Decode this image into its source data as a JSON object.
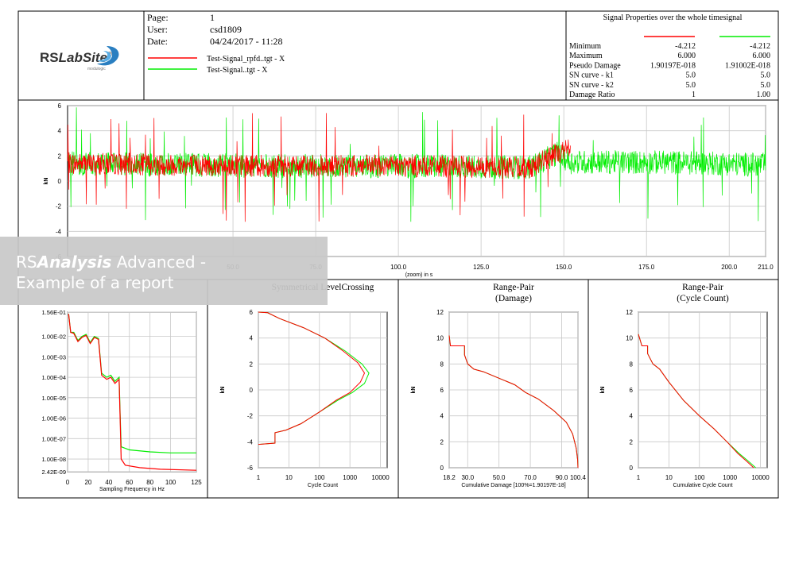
{
  "header": {
    "info_labels": [
      "Page:",
      "User:",
      "Date:"
    ],
    "info_values": [
      "1",
      "csd1809",
      "04/24/2017 - 11:28"
    ],
    "logo": {
      "prefix": "RS",
      "name": "LabSite",
      "mark": "®",
      "sub": "modulogic"
    },
    "legend": [
      {
        "label": "Test-Signal_rpfd..tgt - X",
        "color": "#ff0000"
      },
      {
        "label": "Test-Signal..tgt - X",
        "color": "#00ee00"
      }
    ]
  },
  "properties": {
    "title": "Signal Properties over the whole timesignal",
    "series_colors": [
      "#ff0000",
      "#00ee00"
    ],
    "rows": [
      {
        "name": "Minimum",
        "values": [
          "-4.212",
          "-4.212"
        ]
      },
      {
        "name": "Maximum",
        "values": [
          "6.000",
          "6.000"
        ]
      },
      {
        "name": "Pseudo Damage",
        "values": [
          "1.90197E-018",
          "1.91002E-018"
        ]
      },
      {
        "name": "SN curve - k1",
        "values": [
          "5.0",
          "5.0"
        ]
      },
      {
        "name": "SN curve - k2",
        "values": [
          "5.0",
          "5.0"
        ]
      },
      {
        "name": "Damage Ratio",
        "values": [
          "1",
          "1.00"
        ]
      }
    ]
  },
  "overlay": {
    "rs": "RS",
    "bold": "Analysis",
    "rest": " Advanced -",
    "line2": "Example of a report"
  },
  "chart_data": [
    {
      "id": "time",
      "type": "line",
      "title": "",
      "xlabel": "(zoom) in s",
      "ylabel": "kN",
      "xlim": [
        0,
        211.0
      ],
      "ylim": [
        -6,
        6
      ],
      "xticks": [
        "50.0",
        "75.0",
        "100.0",
        "125.0",
        "150.0",
        "175.0",
        "200.0",
        "211.0"
      ],
      "yticks": [
        "6",
        "4",
        "2",
        "0",
        "-2",
        "-4",
        "-6"
      ],
      "series": [
        {
          "color": "#ff0000",
          "t_end": 152,
          "center": [
            [
              0,
              1.4
            ],
            [
              30,
              1.3
            ],
            [
              60,
              1.2
            ],
            [
              100,
              1.2
            ],
            [
              140,
              1.1
            ],
            [
              148,
              2.2
            ],
            [
              152,
              2.6
            ]
          ],
          "amp": 0.55
        },
        {
          "color": "#00ee00",
          "t_end": 211,
          "center": [
            [
              0,
              1.4
            ],
            [
              30,
              1.3
            ],
            [
              60,
              1.2
            ],
            [
              100,
              1.2
            ],
            [
              140,
              1.1
            ],
            [
              148,
              2.2
            ],
            [
              152,
              1.5
            ],
            [
              180,
              1.5
            ],
            [
              211,
              1.3
            ]
          ],
          "amp": 0.6
        }
      ]
    },
    {
      "id": "psd",
      "type": "line",
      "title": "",
      "xlabel": "Sampling Frequency in Hz",
      "ylabel": "",
      "xlim": [
        0,
        125
      ],
      "ylim_log10": [
        -8.62,
        -0.81
      ],
      "xticks": [
        "0",
        "20",
        "40",
        "60",
        "80",
        "100",
        "125"
      ],
      "yticks": [
        "1.56E-01",
        "1.00E-02",
        "1.00E-03",
        "1.00E-04",
        "1.00E-05",
        "1.00E-06",
        "1.00E-07",
        "1.00E-08",
        "2.42E-09"
      ],
      "series": [
        {
          "color": "#00ee00",
          "points": [
            [
              1,
              -0.9
            ],
            [
              3,
              -1.8
            ],
            [
              6,
              -1.8
            ],
            [
              10,
              -2.2
            ],
            [
              14,
              -2.0
            ],
            [
              18,
              -1.9
            ],
            [
              22,
              -2.3
            ],
            [
              26,
              -2.0
            ],
            [
              30,
              -2.1
            ],
            [
              33,
              -3.8
            ],
            [
              38,
              -4.0
            ],
            [
              42,
              -3.9
            ],
            [
              46,
              -4.2
            ],
            [
              50,
              -4.0
            ],
            [
              51,
              -5.8
            ],
            [
              52,
              -7.4
            ],
            [
              60,
              -7.55
            ],
            [
              80,
              -7.65
            ],
            [
              100,
              -7.7
            ],
            [
              125,
              -7.7
            ]
          ]
        },
        {
          "color": "#ff0000",
          "points": [
            [
              1,
              -0.9
            ],
            [
              3,
              -1.8
            ],
            [
              6,
              -1.85
            ],
            [
              10,
              -2.25
            ],
            [
              14,
              -2.05
            ],
            [
              18,
              -1.95
            ],
            [
              22,
              -2.35
            ],
            [
              26,
              -2.05
            ],
            [
              30,
              -2.15
            ],
            [
              33,
              -3.9
            ],
            [
              38,
              -4.1
            ],
            [
              42,
              -4.0
            ],
            [
              46,
              -4.3
            ],
            [
              50,
              -4.1
            ],
            [
              51,
              -6.0
            ],
            [
              52,
              -8.0
            ],
            [
              56,
              -8.3
            ],
            [
              70,
              -8.42
            ],
            [
              90,
              -8.5
            ],
            [
              125,
              -8.55
            ]
          ]
        }
      ]
    },
    {
      "id": "lc",
      "type": "line",
      "title": "Symmetrical LevelCrossing",
      "xlabel": "Cycle Count",
      "ylabel": "kN",
      "xlim_log10": [
        0,
        4.22
      ],
      "ylim": [
        -6,
        6
      ],
      "xticks": [
        "1",
        "10",
        "100",
        "1000",
        "10000"
      ],
      "yticks": [
        "6",
        "4",
        "2",
        "0",
        "-2",
        "-4",
        "-6"
      ],
      "series": [
        {
          "color": "#00ee00",
          "points": [
            [
              1,
              6
            ],
            [
              2,
              5.95
            ],
            [
              5,
              5.5
            ],
            [
              30,
              4.8
            ],
            [
              150,
              4.0
            ],
            [
              700,
              3.0
            ],
            [
              2500,
              2.0
            ],
            [
              4200,
              1.3
            ],
            [
              3000,
              0.5
            ],
            [
              1200,
              -0.2
            ],
            [
              400,
              -0.8
            ],
            [
              100,
              -1.7
            ],
            [
              25,
              -2.6
            ],
            [
              8,
              -3.1
            ],
            [
              3.5,
              -3.3
            ],
            [
              3.5,
              -4.1
            ],
            [
              1,
              -4.2
            ]
          ]
        },
        {
          "color": "#ff0000",
          "points": [
            [
              1,
              6
            ],
            [
              2,
              5.95
            ],
            [
              5,
              5.5
            ],
            [
              30,
              4.8
            ],
            [
              150,
              4.0
            ],
            [
              600,
              3.0
            ],
            [
              1800,
              2.1
            ],
            [
              3000,
              1.3
            ],
            [
              2200,
              0.6
            ],
            [
              1000,
              -0.2
            ],
            [
              350,
              -0.8
            ],
            [
              100,
              -1.7
            ],
            [
              25,
              -2.6
            ],
            [
              8,
              -3.1
            ],
            [
              3.5,
              -3.3
            ],
            [
              3.5,
              -4.1
            ],
            [
              1,
              -4.2
            ]
          ]
        }
      ]
    },
    {
      "id": "rpd",
      "type": "line",
      "title": "Range-Pair\n(Damage)",
      "xlabel": "Cumulative Damage [100%=1.90197E-18]",
      "ylabel": "kN",
      "xlim": [
        18.2,
        100.4
      ],
      "ylim": [
        0,
        12
      ],
      "xticks": [
        "18.2",
        "30.0",
        "50.0",
        "70.0",
        "90.0",
        "100.4"
      ],
      "yticks": [
        "12",
        "10",
        "8",
        "6",
        "4",
        "2",
        "0"
      ],
      "series": [
        {
          "color": "#00ee00",
          "points": [
            [
              18.2,
              10.2
            ],
            [
              19,
              9.4
            ],
            [
              28,
              9.4
            ],
            [
              28,
              8.7
            ],
            [
              30,
              8.0
            ],
            [
              34,
              7.6
            ],
            [
              40,
              7.4
            ],
            [
              50,
              6.9
            ],
            [
              60,
              6.4
            ],
            [
              67,
              5.8
            ],
            [
              75,
              5.3
            ],
            [
              85,
              4.4
            ],
            [
              93,
              3.5
            ],
            [
              97,
              2.6
            ],
            [
              99.3,
              1.5
            ],
            [
              100.2,
              0.6
            ],
            [
              100.4,
              0
            ]
          ]
        },
        {
          "color": "#ff0000",
          "points": [
            [
              18.2,
              10.2
            ],
            [
              19,
              9.4
            ],
            [
              28,
              9.4
            ],
            [
              28,
              8.7
            ],
            [
              30,
              8.0
            ],
            [
              34,
              7.6
            ],
            [
              40,
              7.4
            ],
            [
              50,
              6.9
            ],
            [
              60,
              6.4
            ],
            [
              67,
              5.8
            ],
            [
              75,
              5.3
            ],
            [
              85,
              4.4
            ],
            [
              93,
              3.5
            ],
            [
              97,
              2.6
            ],
            [
              99.3,
              1.5
            ],
            [
              100.2,
              0.6
            ],
            [
              100.4,
              0
            ]
          ]
        }
      ]
    },
    {
      "id": "rpc",
      "type": "line",
      "title": "Range-Pair\n(Cycle Count)",
      "xlabel": "Cumulative Cycle Count",
      "ylabel": "kN",
      "xlim_log10": [
        0,
        4.22
      ],
      "ylim": [
        0,
        12
      ],
      "xticks": [
        "1",
        "10",
        "100",
        "1000",
        "10000"
      ],
      "yticks": [
        "12",
        "10",
        "8",
        "6",
        "4",
        "2",
        "0"
      ],
      "series": [
        {
          "color": "#00ee00",
          "points": [
            [
              1,
              10.3
            ],
            [
              1.3,
              9.4
            ],
            [
              2,
              9.4
            ],
            [
              2,
              8.8
            ],
            [
              3,
              8.0
            ],
            [
              5,
              7.6
            ],
            [
              10,
              6.6
            ],
            [
              30,
              5.2
            ],
            [
              100,
              4.0
            ],
            [
              300,
              3.0
            ],
            [
              800,
              2.0
            ],
            [
              2000,
              1.1
            ],
            [
              4000,
              0.5
            ],
            [
              7000,
              0
            ]
          ]
        },
        {
          "color": "#ff0000",
          "points": [
            [
              1,
              10.3
            ],
            [
              1.3,
              9.4
            ],
            [
              2,
              9.4
            ],
            [
              2,
              8.8
            ],
            [
              3,
              8.0
            ],
            [
              5,
              7.6
            ],
            [
              10,
              6.6
            ],
            [
              30,
              5.2
            ],
            [
              100,
              4.0
            ],
            [
              300,
              3.0
            ],
            [
              800,
              2.0
            ],
            [
              1800,
              1.1
            ],
            [
              3500,
              0.5
            ],
            [
              6000,
              0
            ]
          ]
        }
      ]
    }
  ]
}
